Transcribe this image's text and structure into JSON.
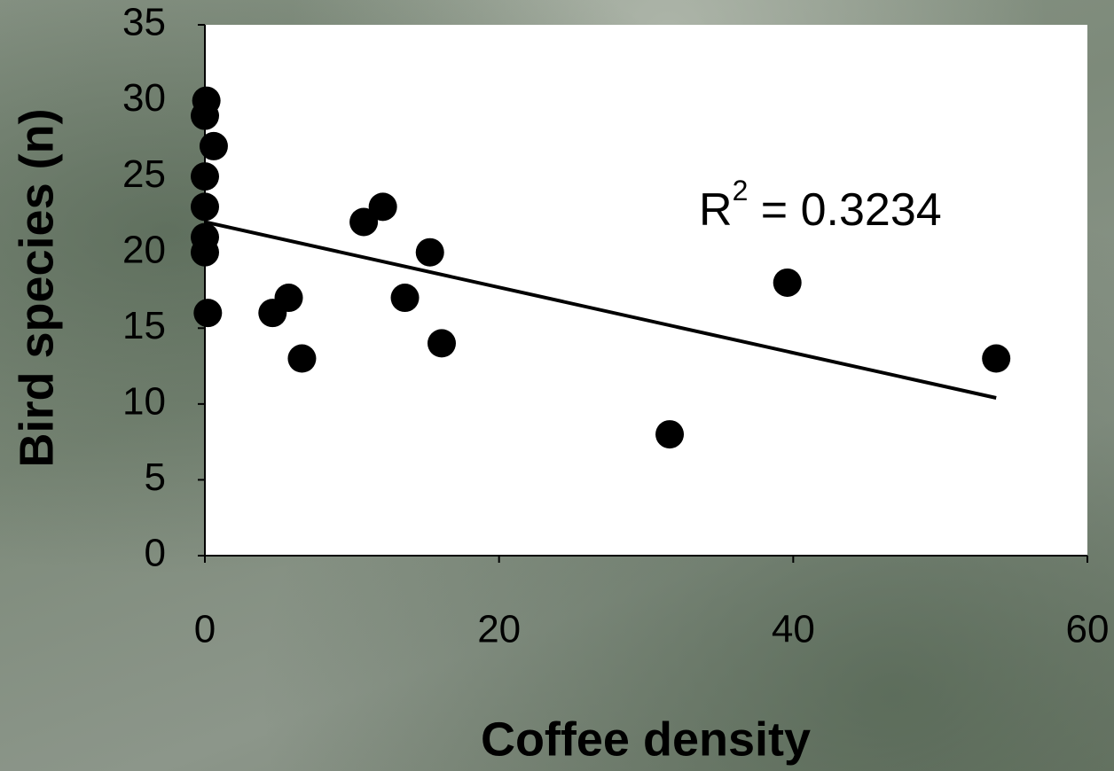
{
  "chart_data": {
    "type": "scatter",
    "xlabel": "Coffee density",
    "ylabel": "Bird species (n)",
    "annotation": [
      "R",
      "2",
      " = 0.3234"
    ],
    "series": [
      {
        "color": "#000000",
        "x": [
          0.1,
          0,
          0.6,
          0,
          0,
          0,
          0,
          0.2,
          4.6,
          5.7,
          6.6,
          10.8,
          12.1,
          13.6,
          15.3,
          16.1,
          31.6,
          39.6,
          53.8
        ],
        "values": [
          30,
          29,
          27,
          25,
          23,
          21,
          20,
          16,
          16,
          17,
          13,
          22,
          23,
          17,
          20,
          14,
          8,
          18,
          13
        ]
      }
    ],
    "trendline": {
      "color": "#000000",
      "x": [
        0,
        53.8
      ],
      "values": [
        22.0,
        10.4
      ]
    },
    "xlim": [
      0,
      60
    ],
    "xticks": [
      0,
      20,
      40,
      60
    ],
    "ylim": [
      0,
      35
    ],
    "yticks": [
      0,
      5,
      10,
      15,
      20,
      25,
      30,
      35
    ]
  }
}
